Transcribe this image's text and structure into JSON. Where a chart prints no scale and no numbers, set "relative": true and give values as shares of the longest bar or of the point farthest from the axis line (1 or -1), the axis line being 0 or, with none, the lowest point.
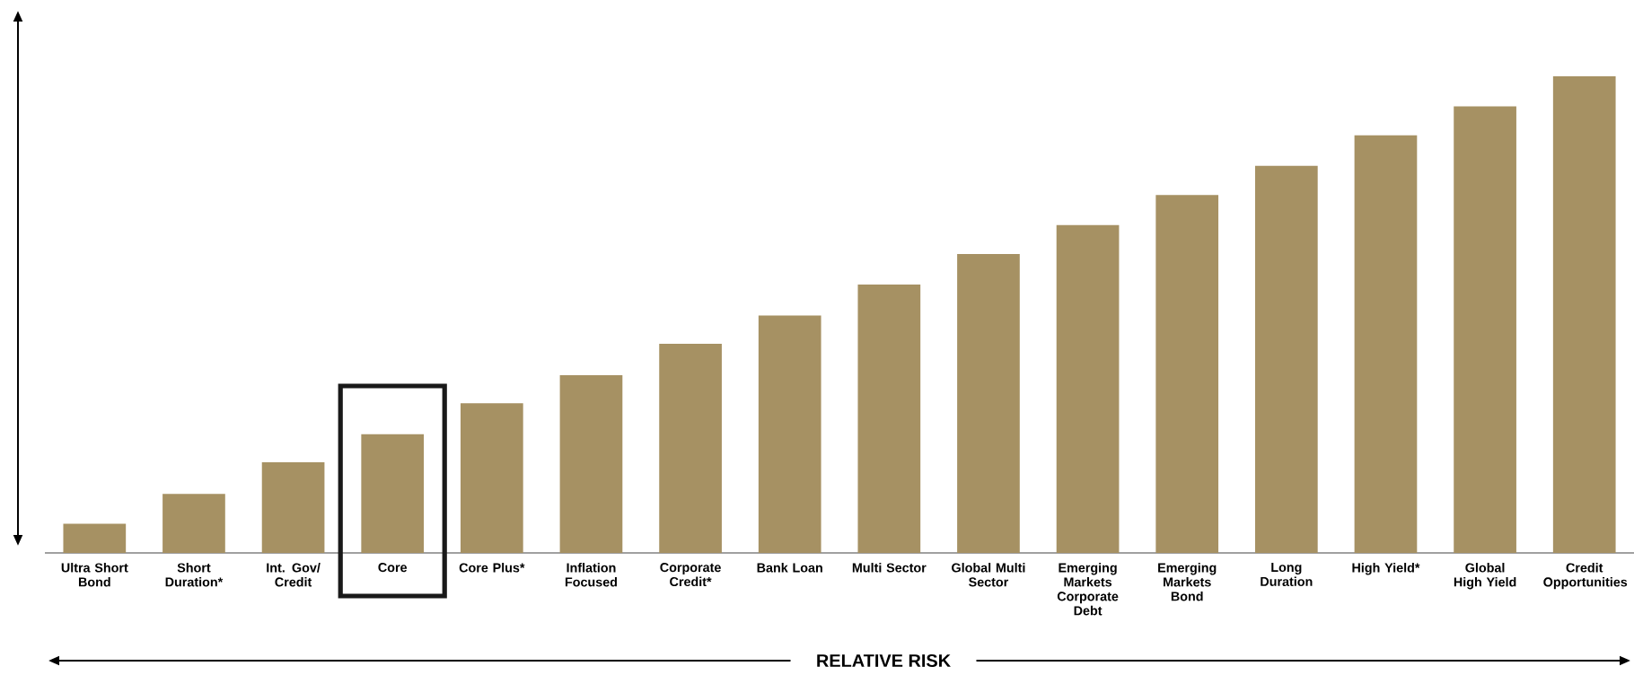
{
  "chart_data": {
    "type": "bar",
    "relative": true,
    "xlabel": "RELATIVE RISK",
    "color": "#a69163",
    "categories": [
      "Ultra Short Bond",
      "Short Duration*",
      "Int. Gov/ Credit",
      "Core",
      "Core Plus*",
      "Inflation Focused",
      "Corporate Credit*",
      "Bank Loan",
      "Multi Sector",
      "Global Multi Sector",
      "Emerging Markets Corporate Debt",
      "Emerging Markets Bond",
      "Long Duration",
      "High Yield*",
      "Global High Yield",
      "Credit Opportunities"
    ],
    "values": [
      0.061,
      0.124,
      0.19,
      0.249,
      0.314,
      0.373,
      0.439,
      0.498,
      0.563,
      0.627,
      0.688,
      0.751,
      0.812,
      0.876,
      0.937,
      1
    ]
  }
}
